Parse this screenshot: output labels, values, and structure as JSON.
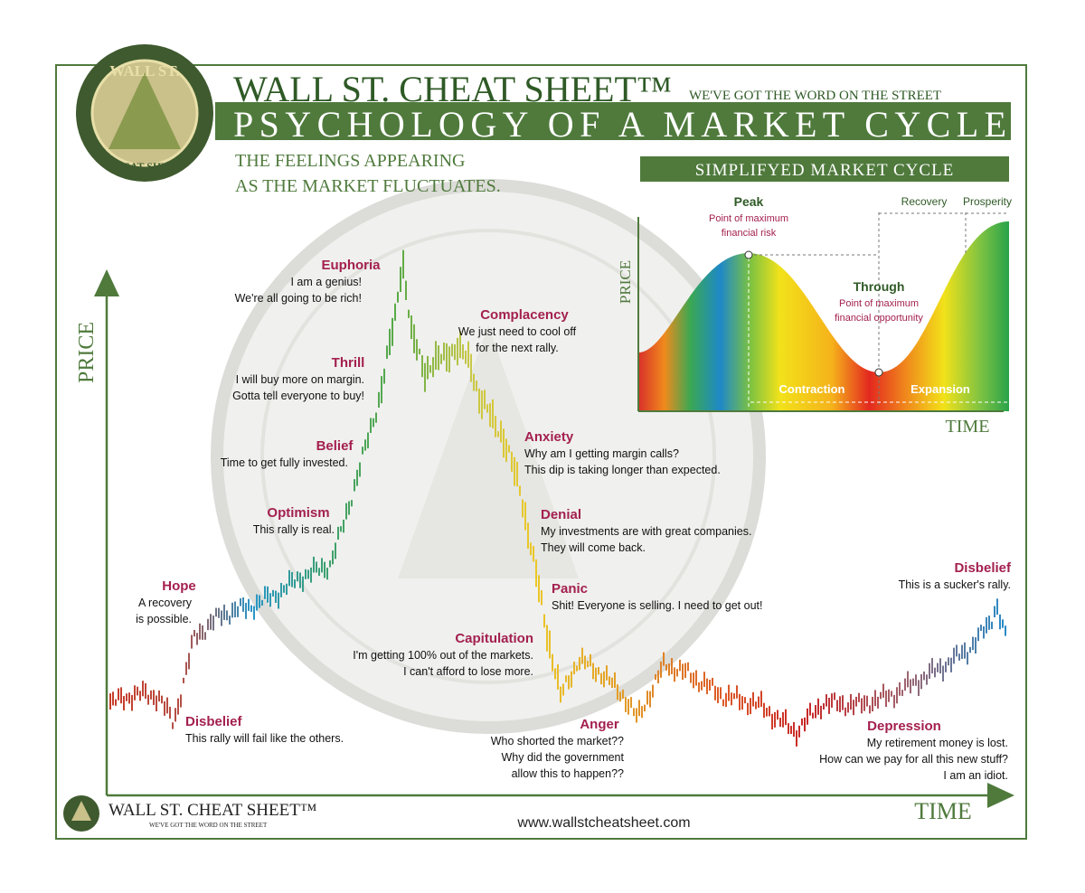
{
  "header": {
    "brand": "WALL ST. CHEAT SHEET™",
    "tagline": "WE'VE GOT THE WORD ON THE STREET",
    "title": "PSYCHOLOGY OF A MARKET CYCLE",
    "subtitle": [
      "THE FEELINGS APPEARING",
      "AS THE MARKET FLUCTUATES."
    ]
  },
  "logo": {
    "top": "WALL ST.",
    "bottom": "CHEAT SHEET"
  },
  "inset": {
    "title": "SIMPLIFYED MARKET CYCLE",
    "y_label": "PRICE",
    "x_label": "TIME",
    "peak": {
      "title": "Peak",
      "lines": [
        "Point of maximum",
        "financial risk"
      ]
    },
    "trough": {
      "title": "Through",
      "lines": [
        "Point of maximum",
        "financial opportunity"
      ]
    },
    "recovery": "Recovery",
    "prosperity": "Prosperity",
    "contraction": "Contraction",
    "expansion": "Expansion"
  },
  "axes": {
    "y_label": "PRICE",
    "x_label": "TIME"
  },
  "stages": [
    {
      "title": "Euphoria",
      "lines": [
        "I am a genius!",
        "We're all going to be rich!"
      ]
    },
    {
      "title": "Complacency",
      "lines": [
        "We just need to cool off",
        "for the next rally."
      ]
    },
    {
      "title": "Thrill",
      "lines": [
        "I will buy more on margin.",
        "Gotta tell everyone to buy!"
      ]
    },
    {
      "title": "Belief",
      "lines": [
        "Time to get fully invested."
      ]
    },
    {
      "title": "Optimism",
      "lines": [
        "This rally is real."
      ]
    },
    {
      "title": "Hope",
      "lines": [
        "A recovery",
        "is possible."
      ]
    },
    {
      "title": "Disbelief",
      "lines": [
        "This rally will fail like the others."
      ]
    },
    {
      "title": "Anxiety",
      "lines": [
        "Why am I getting margin calls?",
        "This dip is taking longer than expected."
      ]
    },
    {
      "title": "Denial",
      "lines": [
        "My investments are with great companies.",
        "They will come back."
      ]
    },
    {
      "title": "Panic",
      "lines": [
        "Shit! Everyone is selling. I need to get out!"
      ]
    },
    {
      "title": "Capitulation",
      "lines": [
        "I'm getting 100% out of the markets.",
        "I can't afford to lose more."
      ]
    },
    {
      "title": "Anger",
      "lines": [
        "Who shorted the market??",
        "Why did the government",
        "allow this to happen??"
      ]
    },
    {
      "title": "Depression",
      "lines": [
        "My retirement money is lost.",
        "How can we pay for all this new stuff?",
        "I am an idiot."
      ]
    },
    {
      "title": "Disbelief",
      "lines": [
        "This is a sucker's rally."
      ]
    }
  ],
  "footer": {
    "brand": "WALL ST. CHEAT SHEET™",
    "tagline": "WE'VE GOT THE WORD ON THE STREET",
    "url": "www.wallstcheatsheet.com"
  }
}
